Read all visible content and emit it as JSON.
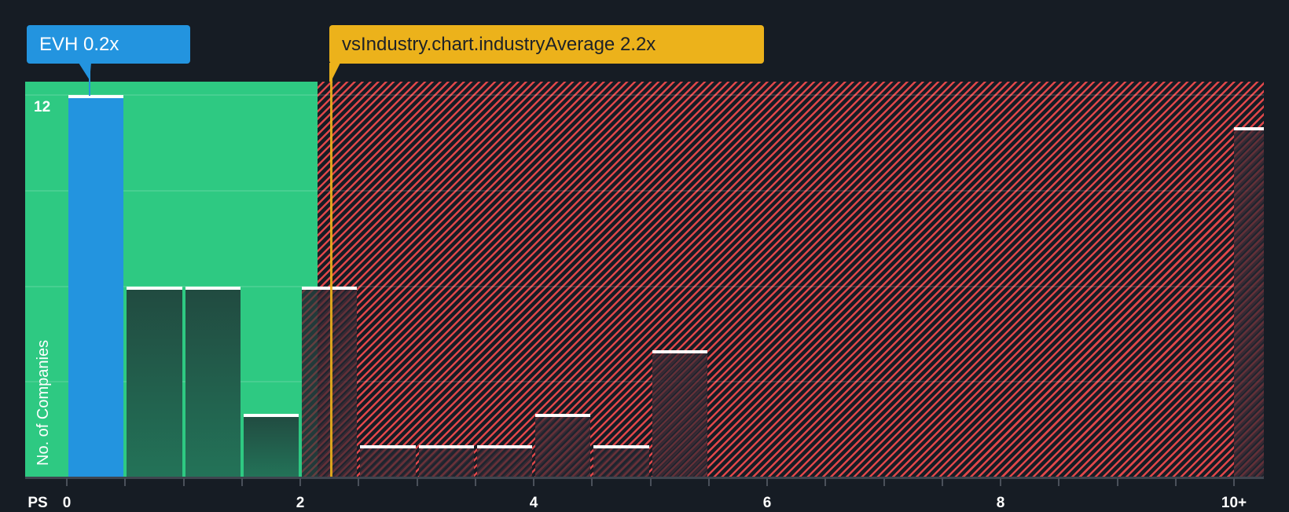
{
  "chart_data": {
    "type": "bar",
    "title": "",
    "xlabel": "PS",
    "ylabel": "No. of Companies",
    "x_tick_labels": [
      "0",
      "2",
      "4",
      "6",
      "8",
      "10+"
    ],
    "y_tick_labels": [
      "12"
    ],
    "ylim": [
      0,
      12
    ],
    "xlim": [
      0,
      10.25
    ],
    "bin_width": 0.5,
    "categories": [
      "0-0.5",
      "0.5-1",
      "1-1.5",
      "1.5-2",
      "2-2.5",
      "2.5-3",
      "3-3.5",
      "3.5-4",
      "4-4.5",
      "4.5-5",
      "5-5.5",
      "10+"
    ],
    "values": [
      12,
      6,
      6,
      2,
      6,
      1,
      1,
      1,
      2,
      1,
      4,
      11
    ],
    "highlight_index": 0,
    "annotations": [
      {
        "label": "EVH 0.2x",
        "x": 0.2,
        "color": "#2394df"
      },
      {
        "label": "vsIndustry.chart.industryAverage 2.2x",
        "x": 2.2,
        "color": "#ecb21b"
      }
    ],
    "regions": [
      {
        "from": 0,
        "to": 2.2,
        "color": "#2ec982",
        "meaning": "below industry average"
      },
      {
        "from": 2.2,
        "to": 10.25,
        "color": "#e0474a",
        "pattern": "hatched",
        "meaning": "above industry average"
      }
    ],
    "grid": true,
    "legend": null
  },
  "callouts": {
    "company": "EVH 0.2x",
    "industry": "vsIndustry.chart.industryAverage 2.2x"
  },
  "axis": {
    "x_title": "PS",
    "y_title": "No. of Companies",
    "y_max_label": "12",
    "x_labels": [
      "0",
      "2",
      "4",
      "6",
      "8",
      "10+"
    ]
  },
  "colors": {
    "background": "#161c24",
    "company": "#2394df",
    "industry": "#ecb21b",
    "below_avg": "#2ec982",
    "above_avg": "#e0474a"
  }
}
